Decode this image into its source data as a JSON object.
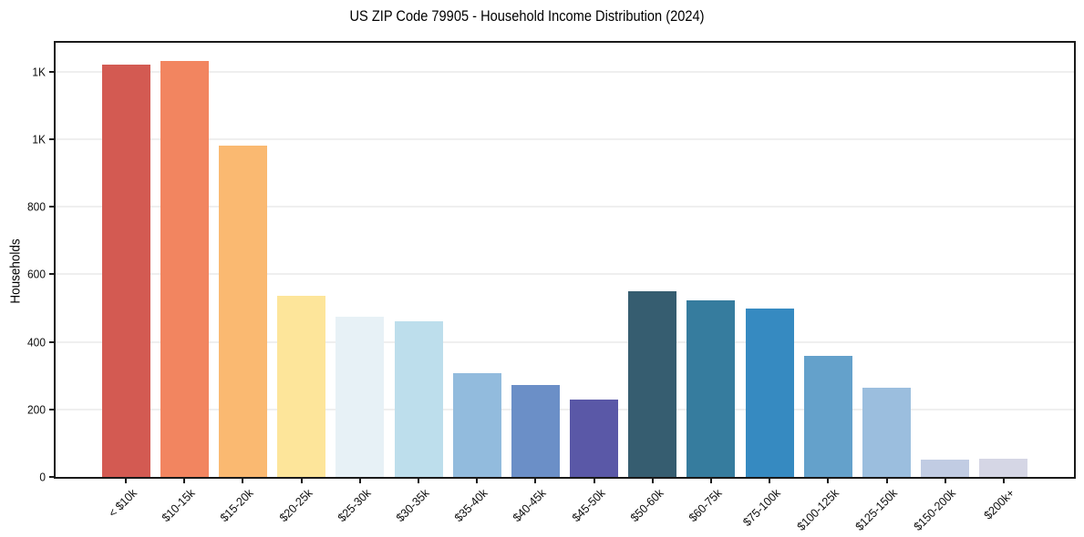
{
  "chart_data": {
    "type": "bar",
    "title": "US ZIP Code 79905 - Household Income Distribution (2024)",
    "xlabel": "",
    "ylabel": "Households",
    "categories": [
      "< $10k",
      "$10-15k",
      "$15-20k",
      "$20-25k",
      "$25-30k",
      "$30-35k",
      "$35-40k",
      "$40-45k",
      "$45-50k",
      "$50-60k",
      "$60-75k",
      "$75-100k",
      "$100-125k",
      "$125-150k",
      "$150-200k",
      "$200k+"
    ],
    "values": [
      1220,
      1230,
      980,
      535,
      475,
      460,
      307,
      273,
      230,
      550,
      524,
      498,
      357,
      265,
      50,
      53
    ],
    "bar_colors": [
      "#d35a52",
      "#f28560",
      "#fab971",
      "#fde59a",
      "#e7f1f6",
      "#bddeec",
      "#92bbdd",
      "#6b8fc7",
      "#5a58a7",
      "#365d70",
      "#367c9e",
      "#368ac1",
      "#64a1cb",
      "#9bbede",
      "#c1cce3",
      "#d5d6e5"
    ],
    "ylim": [
      0,
      1285
    ],
    "yticks": [
      {
        "value": 0,
        "label": "0"
      },
      {
        "value": 200,
        "label": "200"
      },
      {
        "value": 400,
        "label": "400"
      },
      {
        "value": 600,
        "label": "600"
      },
      {
        "value": 800,
        "label": "800"
      },
      {
        "value": 1000,
        "label": "1K"
      },
      {
        "value": 1200,
        "label": "1K"
      }
    ],
    "grid": "horizontal",
    "legend": "none",
    "colors": {
      "background": "#ffffff",
      "spine": "#1a1a1a",
      "gridline": "#efefef",
      "text": "#0d0d0d"
    }
  }
}
